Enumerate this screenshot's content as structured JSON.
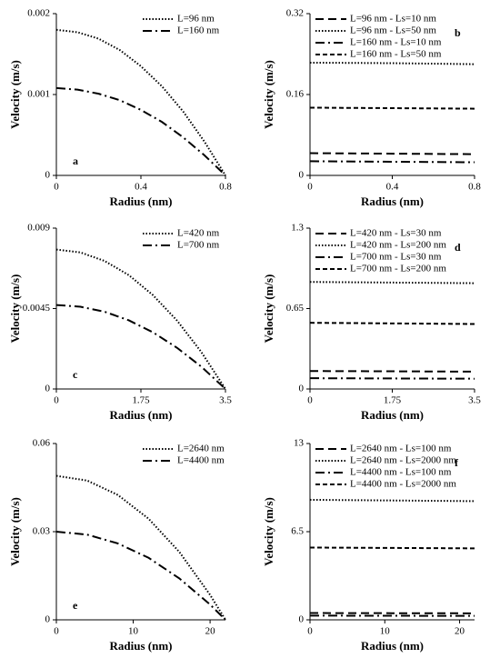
{
  "chart_data": [
    {
      "type": "line",
      "label": "a",
      "x_label": "Radius (nm)",
      "y_label": "Velocity (m/s)",
      "x": [
        0,
        0.1,
        0.2,
        0.3,
        0.4,
        0.5,
        0.6,
        0.7,
        0.8
      ],
      "xlim": [
        0,
        0.8
      ],
      "xticks": [
        0,
        0.4,
        0.8
      ],
      "ylim": [
        0,
        0.002
      ],
      "yticks": [
        0,
        0.001,
        0.002
      ],
      "series": [
        {
          "name": "L=96 nm",
          "color": "#000000",
          "style": "dotted",
          "values": [
            0.0018,
            0.00177,
            0.00169,
            0.00155,
            0.00135,
            0.0011,
            0.00079,
            0.00042,
            0
          ]
        },
        {
          "name": "L=160 nm",
          "color": "#000000",
          "style": "dashdot",
          "values": [
            0.00108,
            0.00106,
            0.00101,
            0.00093,
            0.00081,
            0.00066,
            0.00047,
            0.00025,
            0
          ]
        }
      ]
    },
    {
      "type": "line",
      "label": "b",
      "x_label": "Radius (nm)",
      "y_label": "Velocity (m/s)",
      "x": [
        0,
        0.4,
        0.8
      ],
      "xlim": [
        0,
        0.8
      ],
      "xticks": [
        0,
        0.4,
        0.8
      ],
      "ylim": [
        0,
        0.32
      ],
      "yticks": [
        0,
        0.16,
        0.32
      ],
      "series": [
        {
          "name": "L=96 nm -  Ls=10 nm",
          "color": "#000000",
          "style": "dashed",
          "values": [
            0.044,
            0.043,
            0.042
          ]
        },
        {
          "name": "L=96 nm -  Ls=50 nm",
          "color": "#000000",
          "style": "dotted",
          "values": [
            0.223,
            0.222,
            0.22
          ]
        },
        {
          "name": "L=160 nm - Ls=10 nm",
          "color": "#000000",
          "style": "dashdot",
          "values": [
            0.028,
            0.027,
            0.026
          ]
        },
        {
          "name": "L=160 nm - Ls=50 nm",
          "color": "#000000",
          "style": "shortdash",
          "values": [
            0.134,
            0.133,
            0.132
          ]
        }
      ]
    },
    {
      "type": "line",
      "label": "c",
      "x_label": "Radius (nm)",
      "y_label": "Velocity (m/s)",
      "x": [
        0,
        0.5,
        1,
        1.5,
        2,
        2.5,
        3,
        3.5
      ],
      "xlim": [
        0,
        3.5
      ],
      "xticks": [
        0,
        1.75,
        3.5
      ],
      "ylim": [
        0,
        0.009
      ],
      "yticks": [
        0,
        0.0045,
        0.009
      ],
      "series": [
        {
          "name": "L=420 nm",
          "color": "#000000",
          "style": "dotted",
          "values": [
            0.0078,
            0.00764,
            0.00716,
            0.00637,
            0.00525,
            0.00382,
            0.00207,
            0
          ]
        },
        {
          "name": "L=700 nm",
          "color": "#000000",
          "style": "dashdot",
          "values": [
            0.0047,
            0.0046,
            0.00432,
            0.00384,
            0.00317,
            0.0023,
            0.00125,
            0
          ]
        }
      ]
    },
    {
      "type": "line",
      "label": "d",
      "x_label": "Radius (nm)",
      "y_label": "Velocity (m/s)",
      "x": [
        0,
        1.75,
        3.5
      ],
      "xlim": [
        0,
        3.5
      ],
      "xticks": [
        0,
        1.75,
        3.5
      ],
      "ylim": [
        0,
        1.3
      ],
      "yticks": [
        0,
        0.65,
        1.3
      ],
      "series": [
        {
          "name": "L=420 nm - Ls=30 nm",
          "color": "#000000",
          "style": "dashed",
          "values": [
            0.145,
            0.143,
            0.14
          ]
        },
        {
          "name": "L=420 nm - Ls=200 nm",
          "color": "#000000",
          "style": "dotted",
          "values": [
            0.865,
            0.86,
            0.855
          ]
        },
        {
          "name": "L=700 nm - Ls=30 nm",
          "color": "#000000",
          "style": "dashdot",
          "values": [
            0.087,
            0.085,
            0.083
          ]
        },
        {
          "name": "L=700 nm - Ls=200 nm",
          "color": "#000000",
          "style": "shortdash",
          "values": [
            0.535,
            0.53,
            0.525
          ]
        }
      ]
    },
    {
      "type": "line",
      "label": "e",
      "x_label": "Radius (nm)",
      "y_label": "Velocity (m/s)",
      "x": [
        0,
        4,
        8,
        12,
        16,
        20,
        22
      ],
      "xlim": [
        0,
        22
      ],
      "xticks": [
        0,
        10,
        20
      ],
      "ylim": [
        0,
        0.06
      ],
      "yticks": [
        0,
        0.03,
        0.06
      ],
      "series": [
        {
          "name": "L=2640 nm",
          "color": "#000000",
          "style": "dotted",
          "values": [
            0.049,
            0.0474,
            0.0425,
            0.0344,
            0.0231,
            0.0085,
            0
          ]
        },
        {
          "name": "L=4400 nm",
          "color": "#000000",
          "style": "dashdot",
          "values": [
            0.03,
            0.029,
            0.026,
            0.0211,
            0.0141,
            0.0052,
            0
          ]
        }
      ]
    },
    {
      "type": "line",
      "label": "f",
      "x_label": "Radius (nm)",
      "y_label": "Velocity (m/s)",
      "x": [
        0,
        11,
        22
      ],
      "xlim": [
        0,
        22
      ],
      "xticks": [
        0,
        10,
        20
      ],
      "ylim": [
        0,
        13
      ],
      "yticks": [
        0,
        6.5,
        13
      ],
      "series": [
        {
          "name": "L=2640 nm - Ls=100 nm",
          "color": "#000000",
          "style": "dashed",
          "values": [
            0.5,
            0.49,
            0.48
          ]
        },
        {
          "name": "L=2640 nm - Ls=2000 nm",
          "color": "#000000",
          "style": "dotted",
          "values": [
            8.85,
            8.8,
            8.75
          ]
        },
        {
          "name": "L=4400 nm - Ls=100 nm",
          "color": "#000000",
          "style": "dashdot",
          "values": [
            0.31,
            0.3,
            0.29
          ]
        },
        {
          "name": "L=4400 nm - Ls=2000 nm",
          "color": "#000000",
          "style": "shortdash",
          "values": [
            5.33,
            5.3,
            5.27
          ]
        }
      ]
    }
  ]
}
